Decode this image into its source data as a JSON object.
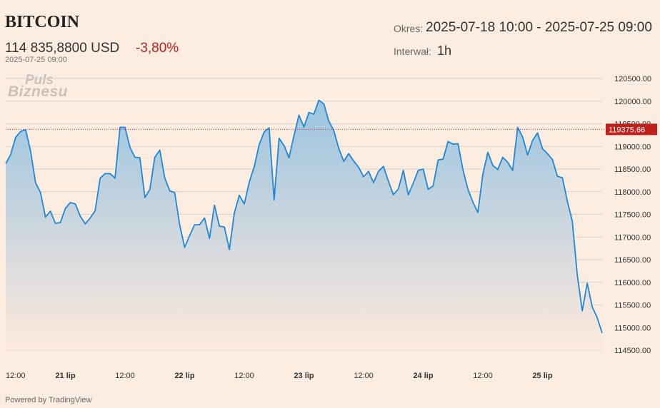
{
  "header": {
    "title": "BITCOIN",
    "price": "114 835,8800 USD",
    "change": "-3,80%",
    "asof": "2025-07-25 09:00",
    "period_label": "Okres:",
    "period_value": "2025-07-18 10:00 - 2025-07-25 09:00",
    "interval_label": "Interwał:",
    "interval_value": "1h"
  },
  "logo": {
    "line1": "Puls",
    "line2": "Biznesu"
  },
  "footer": {
    "powered": "Powered by TradingView"
  },
  "colors": {
    "line": "#1e88d6",
    "fill_top": "#8fbfe0",
    "fill_bottom": "#fde9dc",
    "negative": "#c0201b",
    "price_tag_bg": "#c0201b",
    "gridline": "#d8d2cd"
  },
  "price_tag": {
    "value": 119375.66,
    "label": "119375.66"
  },
  "chart_data": {
    "type": "area",
    "title": "",
    "xlabel": "",
    "ylabel": "",
    "ylim": [
      114500,
      120500
    ],
    "y_ticks": [
      "114500.00",
      "115000.00",
      "115500.00",
      "116000.00",
      "116500.00",
      "117000.00",
      "117500.00",
      "118000.00",
      "118500.00",
      "119000.00",
      "119500.00",
      "120000.00",
      "120500.00"
    ],
    "x_ticks": [
      {
        "label": "12:00",
        "bold": false,
        "hour": 0
      },
      {
        "label": "21 lip",
        "bold": true,
        "hour": 12
      },
      {
        "label": "12:00",
        "bold": false,
        "hour": 24
      },
      {
        "label": "22 lip",
        "bold": true,
        "hour": 36
      },
      {
        "label": "12:00",
        "bold": false,
        "hour": 48
      },
      {
        "label": "23 lip",
        "bold": true,
        "hour": 60
      },
      {
        "label": "12:00",
        "bold": false,
        "hour": 72
      },
      {
        "label": "24 lip",
        "bold": true,
        "hour": 84
      },
      {
        "label": "12:00",
        "bold": false,
        "hour": 96
      },
      {
        "label": "25 lip",
        "bold": true,
        "hour": 108
      }
    ],
    "series": [
      {
        "values": [
          118620,
          118820,
          119200,
          119330,
          119370,
          118900,
          118200,
          117980,
          117440,
          117570,
          117300,
          117320,
          117630,
          117760,
          117730,
          117460,
          117290,
          117420,
          117580,
          118300,
          118400,
          118400,
          118300,
          119420,
          119420,
          118980,
          118760,
          118750,
          117870,
          118050,
          118760,
          118920,
          118300,
          118020,
          117980,
          117270,
          116770,
          117030,
          117270,
          117270,
          117420,
          116970,
          117700,
          117240,
          117220,
          116720,
          117530,
          117920,
          117730,
          118210,
          118550,
          119040,
          119320,
          119410,
          117820,
          119180,
          119020,
          118750,
          119240,
          119690,
          119430,
          119750,
          119710,
          120020,
          119940,
          119560,
          119350,
          118960,
          118670,
          118840,
          118680,
          118540,
          118330,
          118450,
          118200,
          118450,
          118560,
          118230,
          117930,
          118060,
          118470,
          117930,
          118190,
          118470,
          118500,
          118050,
          118130,
          118700,
          118720,
          119110,
          119050,
          119060,
          118480,
          118050,
          117770,
          117540,
          118390,
          118870,
          118580,
          118490,
          118760,
          118650,
          118470,
          119420,
          119210,
          118810,
          119130,
          119300,
          118950,
          118840,
          118710,
          118340,
          118310,
          117790,
          117350,
          116160,
          115370,
          115980,
          115460,
          115220,
          114880
        ]
      }
    ]
  }
}
